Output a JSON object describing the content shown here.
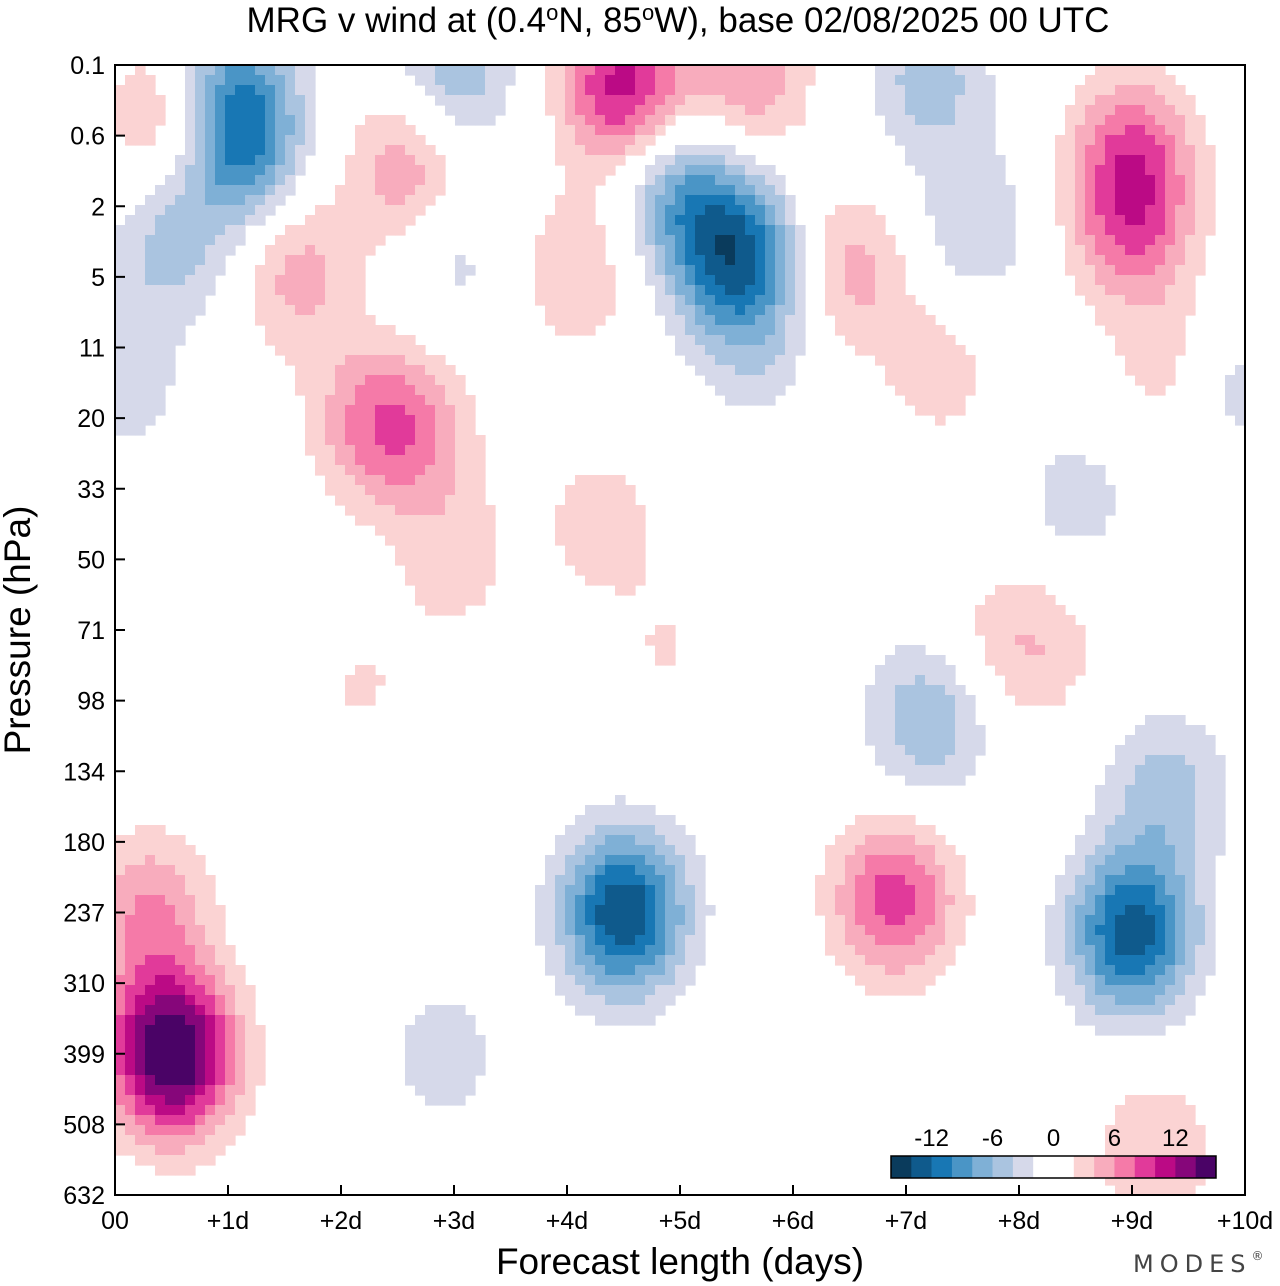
{
  "chart_data": {
    "type": "heatmap",
    "title": "MRG v wind at (0.4°N, 85°W),  base 02/08/2025  00 UTC",
    "title_parts": {
      "prefix": "MRG v wind at (0.4",
      "lat_unit": "N, 85",
      "lon_unit": "W),  base 02/08/2025  00 UTC",
      "degree_symbol": "o"
    },
    "xlabel": "Forecast length (days)",
    "ylabel": "Pressure (hPa)",
    "x_ticks": [
      "00",
      "+1d",
      "+2d",
      "+3d",
      "+4d",
      "+5d",
      "+6d",
      "+7d",
      "+8d",
      "+9d",
      "+10d"
    ],
    "y_ticks": [
      "0.1",
      "0.6",
      "2",
      "5",
      "11",
      "20",
      "33",
      "50",
      "71",
      "98",
      "134",
      "180",
      "237",
      "310",
      "399",
      "508",
      "632"
    ],
    "xlim": [
      0,
      10
    ],
    "colorbar": {
      "tick_labels": [
        "-12",
        "-6",
        "0",
        "6",
        "12"
      ],
      "levels": [
        -16,
        -14,
        -12,
        -10,
        -8,
        -6,
        -4,
        -2,
        0,
        2,
        4,
        6,
        8,
        10,
        12,
        14,
        16
      ],
      "colors": [
        "#0a3b5c",
        "#0f5a8c",
        "#1877b4",
        "#4a95c6",
        "#7fb0d6",
        "#aac4e0",
        "#d6d9ea",
        "#ffffff",
        "#ffffff",
        "#fbd3d3",
        "#f8acbd",
        "#f57aa8",
        "#e13a9a",
        "#bb0a85",
        "#86067a",
        "#4a0366"
      ]
    },
    "blobs": [
      {
        "x": 0.5,
        "lev": 14,
        "v": 17
      },
      {
        "x": 0.3,
        "lev": 12,
        "v": 6
      },
      {
        "x": 4.5,
        "lev": 12,
        "v": -14
      },
      {
        "x": 2.9,
        "lev": 14,
        "v": -3
      },
      {
        "x": 6.9,
        "lev": 11.8,
        "v": 9
      },
      {
        "x": 9.0,
        "lev": 12.3,
        "v": -13
      },
      {
        "x": 9.2,
        "lev": 15.4,
        "v": 4
      },
      {
        "x": 7.2,
        "lev": 9.3,
        "v": -6
      },
      {
        "x": 9.3,
        "lev": 10.3,
        "v": -5
      },
      {
        "x": 2.2,
        "lev": 9.1,
        "v": 3
      },
      {
        "x": 2.3,
        "lev": 10,
        "v": -2
      },
      {
        "x": 4.9,
        "lev": 8.3,
        "v": 2
      },
      {
        "x": 8.2,
        "lev": 8.2,
        "v": 3
      },
      {
        "x": 1.1,
        "lev": 1.1,
        "v": -11
      },
      {
        "x": 0.5,
        "lev": 0.8,
        "v": 6
      },
      {
        "x": 1.0,
        "lev": 0.1,
        "v": -5
      },
      {
        "x": 2.6,
        "lev": 1.45,
        "v": 6
      },
      {
        "x": 3.0,
        "lev": 0.1,
        "v": -6
      },
      {
        "x": 4.5,
        "lev": 0.3,
        "v": 11
      },
      {
        "x": 5.6,
        "lev": 0.2,
        "v": 6
      },
      {
        "x": 5.0,
        "lev": 1.8,
        "v": -7
      },
      {
        "x": 5.5,
        "lev": 2.7,
        "v": -12
      },
      {
        "x": 7.2,
        "lev": 0.2,
        "v": -5
      },
      {
        "x": 6.5,
        "lev": 2.9,
        "v": 5
      },
      {
        "x": 9.0,
        "lev": 1.2,
        "v": 7
      },
      {
        "x": 9.0,
        "lev": 2.3,
        "v": 7
      },
      {
        "x": 0.5,
        "lev": 2.5,
        "v": -5
      },
      {
        "x": 4.1,
        "lev": 2.9,
        "v": 4
      },
      {
        "x": 1.6,
        "lev": 2.9,
        "v": 5
      },
      {
        "x": 3.0,
        "lev": 2.7,
        "v": -3
      },
      {
        "x": 7.6,
        "lev": 2.3,
        "v": -4
      },
      {
        "x": 2.2,
        "lev": 5.0,
        "v": 4
      },
      {
        "x": 2.6,
        "lev": 5.2,
        "v": 6
      },
      {
        "x": 0.1,
        "lev": 4.5,
        "v": -3
      },
      {
        "x": 5.7,
        "lev": 4.0,
        "v": -3
      },
      {
        "x": 9.4,
        "lev": 4.3,
        "v": 4
      },
      {
        "x": 9.8,
        "lev": 4.5,
        "v": -4
      },
      {
        "x": 7.3,
        "lev": 4.3,
        "v": 3
      },
      {
        "x": 4.3,
        "lev": 6.5,
        "v": 3
      },
      {
        "x": 8.5,
        "lev": 6.2,
        "v": -3
      },
      {
        "x": 3.0,
        "lev": 7.0,
        "v": 3
      },
      {
        "x": 7.8,
        "lev": 8.2,
        "v": 2
      }
    ]
  },
  "brand": "MODES",
  "brand_mark": "®"
}
